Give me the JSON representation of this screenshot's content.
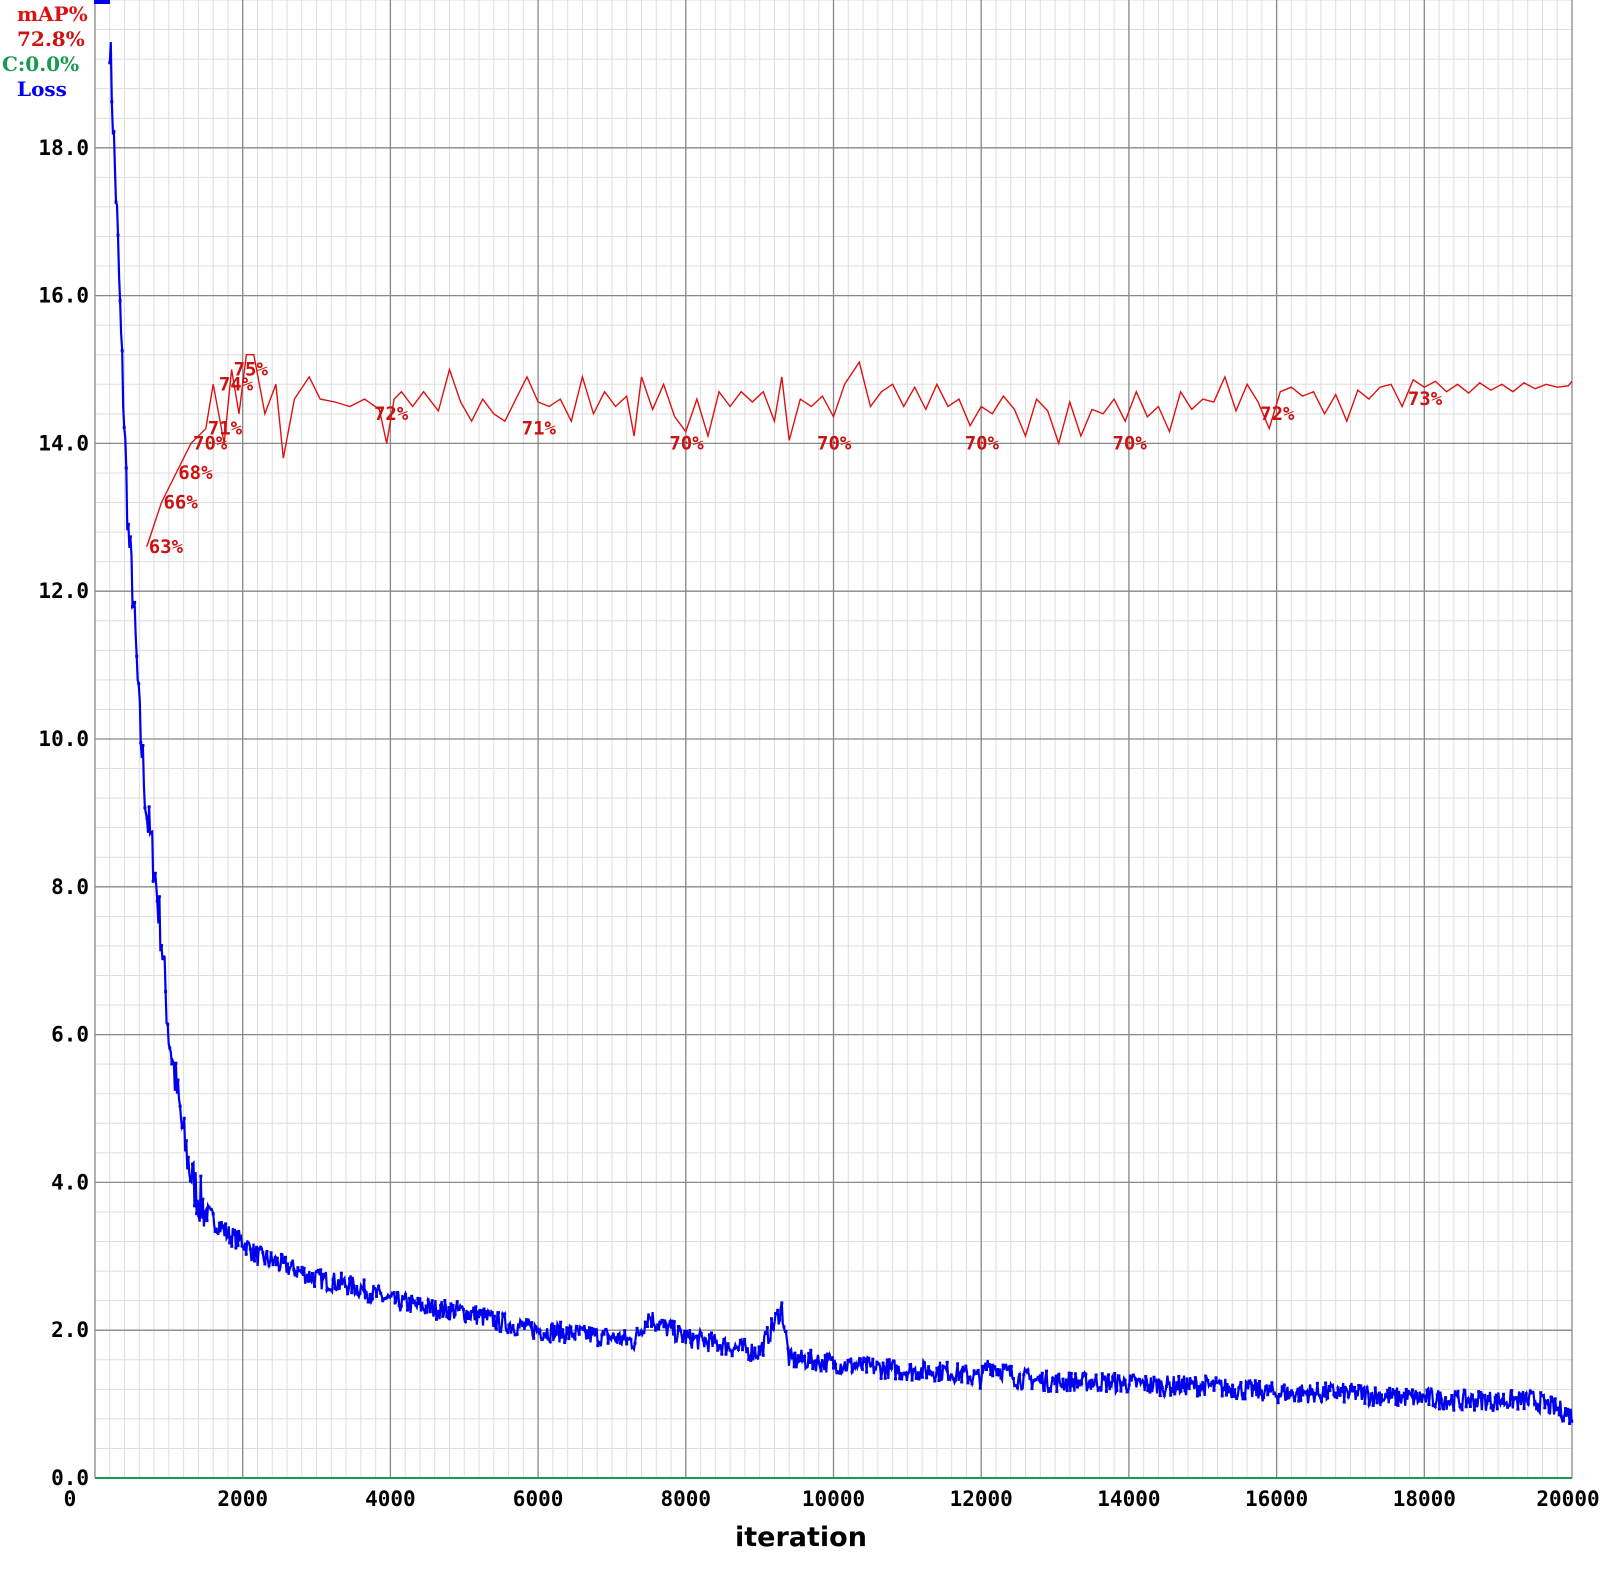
{
  "legend": {
    "map_label": "mAP%",
    "map_value": "72.8%",
    "c_value": "C:0.0%",
    "loss_label": "Loss"
  },
  "colors": {
    "map": "#dd1111",
    "map_text": "#cc1111",
    "c": "#1a9a50",
    "loss": "#0000ee",
    "grid_major": "#888888",
    "grid_minor": "#dddddd"
  },
  "chart_data": {
    "type": "line",
    "xlabel": "iteration",
    "ylabel": "",
    "xlim": [
      0,
      20000
    ],
    "ylim": [
      0,
      20
    ],
    "grid": true,
    "legend_position": "top-left",
    "x_ticks": [
      "0",
      "2000",
      "4000",
      "6000",
      "8000",
      "10000",
      "12000",
      "14000",
      "16000",
      "18000",
      "20000"
    ],
    "y_ticks": [
      "0.0",
      "2.0",
      "4.0",
      "6.0",
      "8.0",
      "10.0",
      "12.0",
      "14.0",
      "16.0",
      "18.0"
    ],
    "series": [
      {
        "name": "Loss",
        "x": [
          200,
          250,
          300,
          350,
          400,
          450,
          500,
          550,
          600,
          700,
          800,
          900,
          1000,
          1100,
          1200,
          1300,
          1400,
          1500,
          1600,
          1800,
          2000,
          2200,
          2500,
          3000,
          3500,
          4000,
          4500,
          5000,
          5500,
          6000,
          6500,
          7000,
          7300,
          7500,
          7600,
          8000,
          8500,
          9000,
          9300,
          9400,
          9600,
          10000,
          10500,
          11000,
          11500,
          12000,
          12100,
          12500,
          13000,
          13500,
          14000,
          14500,
          15000,
          15500,
          16000,
          16500,
          17000,
          17500,
          18000,
          18500,
          19000,
          19500,
          20000
        ],
        "y": [
          19.5,
          18.2,
          17.0,
          15.5,
          14.2,
          12.8,
          12.2,
          11.3,
          10.3,
          9.0,
          8.3,
          7.3,
          6.0,
          5.3,
          4.6,
          4.1,
          3.8,
          3.6,
          3.5,
          3.3,
          3.2,
          3.0,
          2.9,
          2.7,
          2.6,
          2.4,
          2.3,
          2.25,
          2.1,
          2.0,
          1.95,
          1.9,
          1.85,
          2.2,
          2.1,
          1.9,
          1.8,
          1.7,
          2.3,
          1.6,
          1.6,
          1.55,
          1.5,
          1.45,
          1.45,
          1.35,
          1.55,
          1.35,
          1.3,
          1.3,
          1.28,
          1.25,
          1.25,
          1.2,
          1.15,
          1.15,
          1.15,
          1.1,
          1.08,
          1.05,
          1.05,
          1.05,
          0.85
        ]
      },
      {
        "name": "mAP%",
        "x": [
          700,
          900,
          1100,
          1300,
          1500,
          1600,
          1750,
          1850,
          1950,
          2050,
          2150,
          2300,
          2450,
          2550,
          2700,
          2900,
          3050,
          3250,
          3450,
          3650,
          3850,
          3950,
          4050,
          4150,
          4300,
          4450,
          4650,
          4800,
          4950,
          5100,
          5250,
          5400,
          5550,
          5700,
          5850,
          6000,
          6150,
          6300,
          6450,
          6600,
          6750,
          6900,
          7050,
          7200,
          7300,
          7400,
          7550,
          7700,
          7850,
          8000,
          8150,
          8300,
          8450,
          8600,
          8750,
          8900,
          9050,
          9200,
          9300,
          9400,
          9550,
          9700,
          9850,
          10000,
          10150,
          10350,
          10500,
          10650,
          10800,
          10950,
          11100,
          11250,
          11400,
          11550,
          11700,
          11850,
          12000,
          12150,
          12300,
          12450,
          12600,
          12750,
          12900,
          13050,
          13200,
          13350,
          13500,
          13650,
          13800,
          13950,
          14100,
          14250,
          14400,
          14550,
          14700,
          14850,
          15000,
          15150,
          15300,
          15450,
          15600,
          15750,
          15900,
          16050,
          16200,
          16350,
          16500,
          16650,
          16800,
          16950,
          17100,
          17250,
          17400,
          17550,
          17700,
          17850,
          18000,
          18150,
          18300,
          18450,
          18600,
          18750,
          18900,
          19050,
          19200,
          19350,
          19500,
          19650,
          19800,
          19950,
          20000
        ],
        "y": [
          63,
          66,
          68,
          70,
          71,
          74,
          70,
          75,
          72,
          76,
          76,
          72,
          74,
          69,
          73,
          74.5,
          73,
          72.8,
          72.5,
          73,
          72.3,
          70,
          73,
          73.5,
          72.5,
          73.5,
          72.2,
          75,
          72.8,
          71.5,
          73,
          72,
          71.5,
          73,
          74.5,
          72.8,
          72.5,
          73,
          71.5,
          74.5,
          72,
          73.5,
          72.5,
          73.2,
          70.5,
          74.5,
          72.3,
          74,
          71.8,
          70.8,
          73,
          70.5,
          73.5,
          72.5,
          73.5,
          72.8,
          73.5,
          71.5,
          74.5,
          70.2,
          73,
          72.5,
          73.2,
          71.8,
          74,
          75.5,
          72.5,
          73.5,
          74,
          72.5,
          73.8,
          72.3,
          74,
          72.5,
          73,
          71.2,
          72.5,
          72,
          73.2,
          72.3,
          70.5,
          73,
          72.2,
          70,
          72.8,
          70.5,
          72.3,
          72,
          73,
          71.5,
          73.5,
          71.8,
          72.5,
          70.8,
          73.5,
          72.3,
          73,
          72.8,
          74.5,
          72.2,
          74,
          72.8,
          71,
          73.5,
          73.8,
          73.2,
          73.5,
          72,
          73.3,
          71.5,
          73.6,
          73,
          73.8,
          74,
          72.5,
          74.3,
          73.8,
          74.2,
          73.5,
          74,
          73.4,
          74.1,
          73.6,
          74,
          73.5,
          74.1,
          73.7,
          74,
          73.8,
          73.9,
          74.2
        ]
      }
    ],
    "annotations": [
      {
        "x": 700,
        "y": 63,
        "text": "63%"
      },
      {
        "x": 900,
        "y": 66,
        "text": "66%"
      },
      {
        "x": 1100,
        "y": 68,
        "text": "68%"
      },
      {
        "x": 1300,
        "y": 70,
        "text": "70%"
      },
      {
        "x": 1500,
        "y": 71,
        "text": "71%"
      },
      {
        "x": 1650,
        "y": 74,
        "text": "74%"
      },
      {
        "x": 1850,
        "y": 75,
        "text": "75%"
      },
      {
        "x": 3750,
        "y": 72,
        "text": "72%"
      },
      {
        "x": 5750,
        "y": 71,
        "text": "71%"
      },
      {
        "x": 7750,
        "y": 70,
        "text": "70%"
      },
      {
        "x": 9750,
        "y": 70,
        "text": "70%"
      },
      {
        "x": 11750,
        "y": 70,
        "text": "70%"
      },
      {
        "x": 13750,
        "y": 70,
        "text": "70%"
      },
      {
        "x": 15750,
        "y": 72,
        "text": "72%"
      },
      {
        "x": 17750,
        "y": 73,
        "text": "73%"
      }
    ]
  }
}
